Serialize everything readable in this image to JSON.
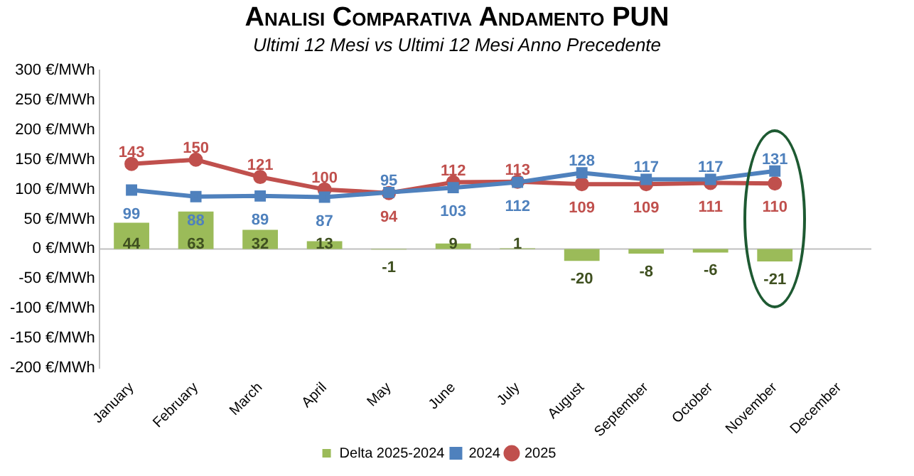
{
  "chart_data": {
    "type": "bar",
    "title": "Analisi Comparativa Andamento PUN",
    "subtitle": "Ultimi 12 Mesi vs Ultimi 12 Mesi Anno Precedente",
    "categories": [
      "January",
      "February",
      "March",
      "April",
      "May",
      "June",
      "July",
      "August",
      "September",
      "October",
      "November",
      "December"
    ],
    "series": [
      {
        "name": "Delta 2025-2024",
        "color": "#9bbb59",
        "values": [
          44,
          63,
          32,
          13,
          -1,
          9,
          1,
          -20,
          -8,
          -6,
          -21,
          null
        ]
      },
      {
        "name": "2024",
        "type": "line",
        "color": "#4f81bd",
        "marker": "square",
        "values": [
          99,
          88,
          89,
          87,
          95,
          103,
          112,
          128,
          117,
          117,
          131,
          null
        ]
      },
      {
        "name": "2025",
        "type": "line",
        "color": "#c0504d",
        "marker": "circle",
        "values": [
          143,
          150,
          121,
          100,
          94,
          112,
          113,
          109,
          109,
          111,
          110,
          null
        ]
      }
    ],
    "ylim": [
      -200,
      300
    ],
    "yticks": [
      {
        "value": -200,
        "label": "-200 €/MWh"
      },
      {
        "value": -150,
        "label": "-150 €/MWh"
      },
      {
        "value": -100,
        "label": "-100 €/MWh"
      },
      {
        "value": -50,
        "label": "-50 €/MWh"
      },
      {
        "value": 0,
        "label": "0 €/MWh"
      },
      {
        "value": 50,
        "label": "50 €/MWh"
      },
      {
        "value": 100,
        "label": "100 €/MWh"
      },
      {
        "value": 150,
        "label": "150 €/MWh"
      },
      {
        "value": 200,
        "label": "200 €/MWh"
      },
      {
        "value": 250,
        "label": "250 €/MWh"
      },
      {
        "value": 300,
        "label": "300 €/MWh"
      }
    ],
    "data_labels": true,
    "legend": "bottom",
    "line_style": "solid"
  }
}
